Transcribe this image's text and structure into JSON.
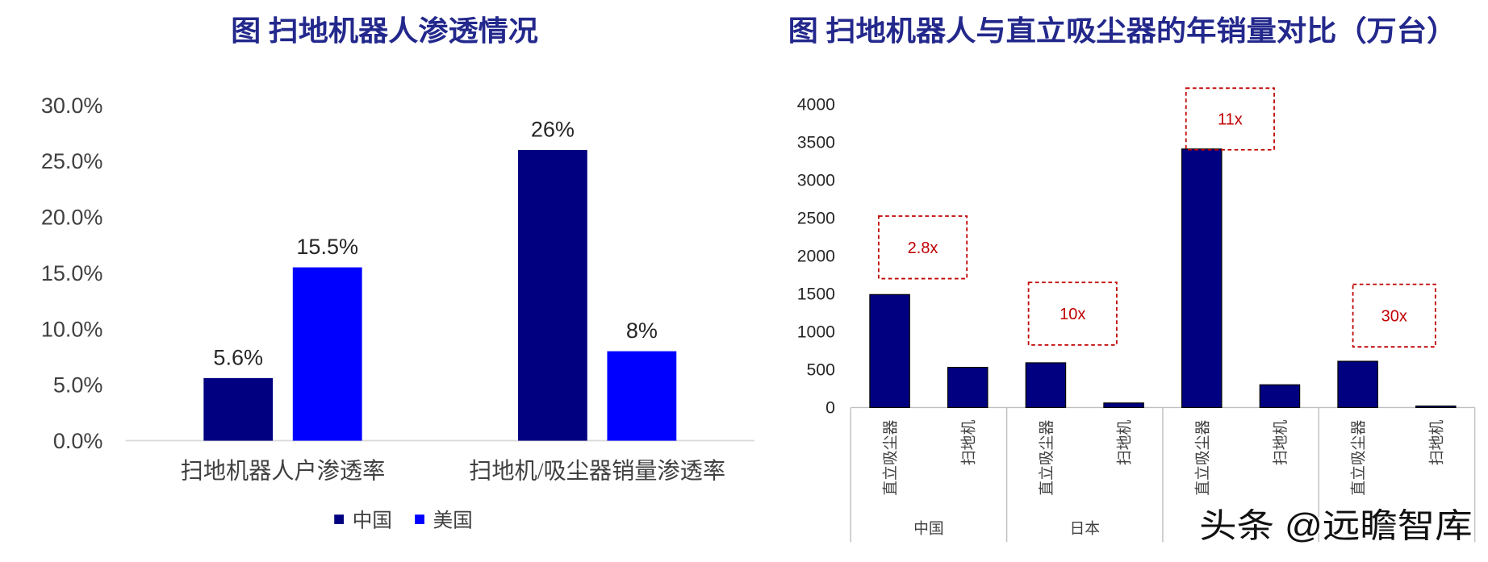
{
  "chart_data": [
    {
      "type": "bar",
      "title": "图 扫地机器人渗透情况",
      "categories": [
        "扫地机器人户渗透率",
        "扫地机/吸尘器销量渗透率"
      ],
      "series": [
        {
          "name": "中国",
          "values": [
            5.6,
            26
          ],
          "labels": [
            "5.6%",
            "26%"
          ],
          "color": "#000080"
        },
        {
          "name": "美国",
          "values": [
            15.5,
            8
          ],
          "labels": [
            "15.5%",
            "8%"
          ],
          "color": "#0000FF"
        }
      ],
      "ylim": [
        0,
        30
      ],
      "yticks": [
        "0.0%",
        "5.0%",
        "10.0%",
        "15.0%",
        "20.0%",
        "25.0%",
        "30.0%"
      ],
      "grid": false,
      "legend": "bottom"
    },
    {
      "type": "bar",
      "title": "图 扫地机器人与直立吸尘器的年销量对比（万台）",
      "groups": [
        {
          "label": "中国",
          "categories": [
            "直立吸尘器",
            "扫地机"
          ],
          "values": [
            1490,
            530
          ],
          "ratio_label": "2.8x"
        },
        {
          "label": "日本",
          "categories": [
            "直立吸尘器",
            "扫地机"
          ],
          "values": [
            590,
            60
          ],
          "ratio_label": "10x"
        },
        {
          "categories": [
            "直立吸尘器",
            "扫地机"
          ],
          "values": [
            3410,
            300
          ],
          "ratio_label": "11x"
        },
        {
          "categories": [
            "直立吸尘器",
            "扫地机"
          ],
          "values": [
            610,
            20
          ],
          "ratio_label": "30x"
        }
      ],
      "ylim": [
        0,
        4000
      ],
      "yticks": [
        "0",
        "500",
        "1000",
        "1500",
        "2000",
        "2500",
        "3000",
        "3500",
        "4000"
      ],
      "bar_color": "#000080",
      "annotation_color": "#C00000",
      "grid": false,
      "legend": "none"
    }
  ],
  "title_color": "#23288C",
  "watermark": "头条 @远瞻智库"
}
